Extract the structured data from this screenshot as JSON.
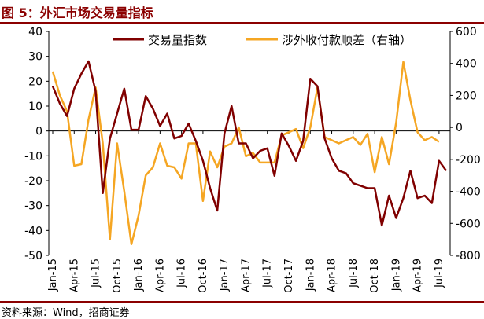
{
  "header": {
    "title": "图 5：外汇市场交易量指标"
  },
  "footer": {
    "source": "资料来源：Wind，招商证券"
  },
  "colors": {
    "series1": "#800000",
    "series2": "#f5a623",
    "accent": "#8b0000"
  },
  "chart_data": {
    "type": "line",
    "title": "",
    "xlabel": "",
    "ylabel": "",
    "ylim": [
      -50,
      40
    ],
    "y2lim": [
      -800,
      600
    ],
    "yticks": [
      "40",
      "30",
      "20",
      "10",
      "0",
      "-10",
      "-20",
      "-30",
      "-40",
      "-50"
    ],
    "y2ticks": [
      "600",
      "400",
      "200",
      "0",
      "-200",
      "-400",
      "-600",
      "-800"
    ],
    "xtick_labels": [
      "Jan-15",
      "Apr-15",
      "Jul-15",
      "Oct-15",
      "Jan-16",
      "Apr-16",
      "Jul-16",
      "Oct-16",
      "Jan-17",
      "Apr-17",
      "Jul-17",
      "Oct-17",
      "Jan-18",
      "Apr-18",
      "Jul-18",
      "Oct-18",
      "Jan-19",
      "Apr-19",
      "Jul-19"
    ],
    "legend_position": "top",
    "series": [
      {
        "name": "交易量指数",
        "axis": "left",
        "values": [
          18,
          11,
          6,
          17,
          23,
          28,
          16,
          -25,
          -3,
          7,
          17,
          0.5,
          0.5,
          14,
          9,
          2,
          7,
          -3,
          -2,
          3,
          -4,
          -12,
          -23,
          -32,
          -1,
          10,
          -5,
          -5,
          -11,
          -8,
          -7,
          -18,
          -1,
          -6,
          -12,
          -4,
          21,
          18,
          -3,
          -11,
          -16,
          -17,
          -21,
          -22,
          -23,
          -23,
          -38,
          -26,
          -35,
          -27,
          -16,
          -27,
          -26,
          -29,
          -12,
          -16
        ]
      },
      {
        "name": "涉外收付款顺差（右轴）",
        "axis": "right",
        "values": [
          350,
          200,
          100,
          -240,
          -230,
          50,
          250,
          -100,
          -700,
          -100,
          -400,
          -730,
          -550,
          -300,
          -250,
          -100,
          -240,
          -250,
          -320,
          -100,
          -100,
          -460,
          -150,
          -250,
          -120,
          -100,
          0,
          -180,
          -160,
          -220,
          -220,
          -220,
          -50,
          -30,
          -10,
          -130,
          0,
          250,
          -60,
          -80,
          -100,
          -80,
          -60,
          -110,
          -40,
          -280,
          -60,
          -230,
          30,
          410,
          170,
          -30,
          -80,
          -60,
          -90
        ]
      }
    ]
  }
}
